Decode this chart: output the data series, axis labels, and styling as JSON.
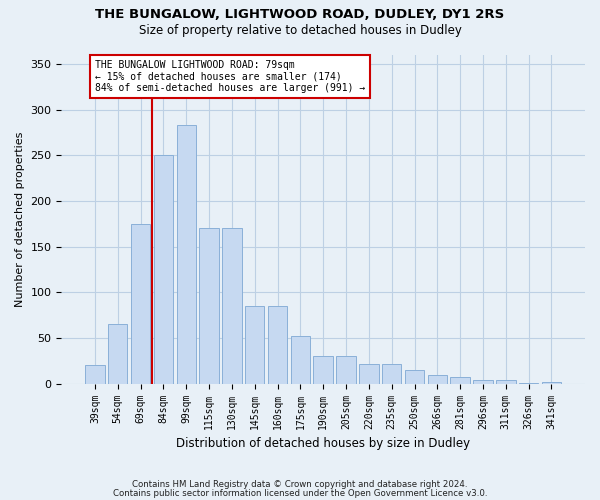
{
  "title1": "THE BUNGALOW, LIGHTWOOD ROAD, DUDLEY, DY1 2RS",
  "title2": "Size of property relative to detached houses in Dudley",
  "xlabel": "Distribution of detached houses by size in Dudley",
  "ylabel": "Number of detached properties",
  "categories": [
    "39sqm",
    "54sqm",
    "69sqm",
    "84sqm",
    "99sqm",
    "115sqm",
    "130sqm",
    "145sqm",
    "160sqm",
    "175sqm",
    "190sqm",
    "205sqm",
    "220sqm",
    "235sqm",
    "250sqm",
    "266sqm",
    "281sqm",
    "296sqm",
    "311sqm",
    "326sqm",
    "341sqm"
  ],
  "values": [
    20,
    65,
    175,
    250,
    283,
    170,
    170,
    85,
    85,
    52,
    30,
    30,
    22,
    22,
    15,
    10,
    7,
    4,
    4,
    1,
    2
  ],
  "bar_color": "#c6d9f1",
  "bar_edge_color": "#8ab0d8",
  "grid_color": "#bdd0e4",
  "background_color": "#e8f0f7",
  "vline_color": "#cc0000",
  "vline_pos": 2.5,
  "annotation_text": "THE BUNGALOW LIGHTWOOD ROAD: 79sqm\n← 15% of detached houses are smaller (174)\n84% of semi-detached houses are larger (991) →",
  "annotation_box_color": "white",
  "annotation_box_edge": "#cc0000",
  "ylim": [
    0,
    360
  ],
  "yticks": [
    0,
    50,
    100,
    150,
    200,
    250,
    300,
    350
  ],
  "footer1": "Contains HM Land Registry data © Crown copyright and database right 2024.",
  "footer2": "Contains public sector information licensed under the Open Government Licence v3.0."
}
